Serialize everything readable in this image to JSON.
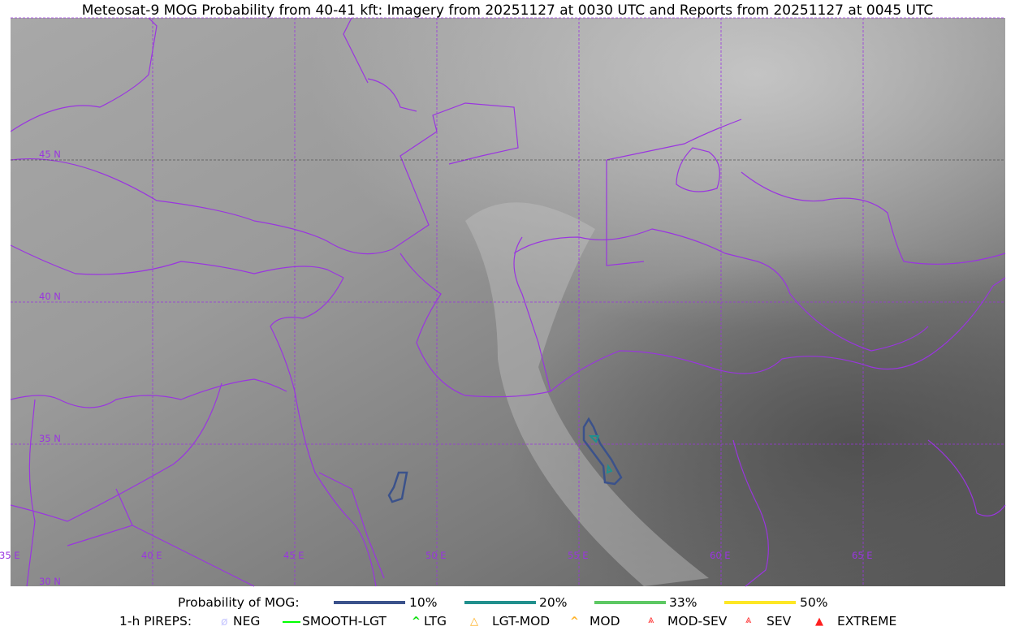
{
  "title": "Meteosat-9 MOG Probability from 40-41 kft: Imagery from 20251127 at 0030 UTC and Reports from 20251127 at 0045 UTC",
  "map": {
    "border_color": "#9a35e0",
    "lat_labels": [
      "45 N",
      "40 N",
      "35 N",
      "30 N"
    ],
    "lon_labels": [
      "35 E",
      "40 E",
      "45 E",
      "50 E",
      "55 E",
      "60 E",
      "65 E"
    ]
  },
  "legend": {
    "mog_label": "Probability of MOG:",
    "mog_levels": [
      {
        "label": "10%",
        "color": "#3b528b"
      },
      {
        "label": "20%",
        "color": "#21908d"
      },
      {
        "label": "33%",
        "color": "#5dc863"
      },
      {
        "label": "50%",
        "color": "#fde725"
      }
    ],
    "pireps_label": "1-h PIREPS:",
    "pireps": [
      {
        "label": "NEG",
        "color": "#c8c8ff",
        "icon": "neg-icon"
      },
      {
        "label": "SMOOTH-LGT",
        "color": "#00ff00",
        "icon": "smooth-lgt-icon"
      },
      {
        "label": "LTG",
        "color": "#00dd00",
        "icon": "ltg-icon"
      },
      {
        "label": "LGT-MOD",
        "color": "#ffb020",
        "icon": "lgt-mod-icon"
      },
      {
        "label": "MOD",
        "color": "#ffb020",
        "icon": "mod-icon"
      },
      {
        "label": "MOD-SEV",
        "color": "#ff3030",
        "icon": "mod-sev-icon"
      },
      {
        "label": "SEV",
        "color": "#ff3030",
        "icon": "sev-icon"
      },
      {
        "label": "EXTREME",
        "color": "#ff2020",
        "icon": "extreme-icon"
      }
    ]
  }
}
